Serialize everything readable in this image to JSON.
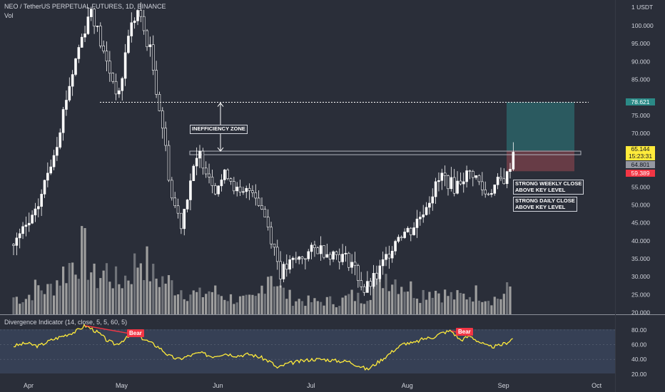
{
  "header": {
    "symbol_line": "NEO / TetherUS PERPETUAL FUTURES, 1D, BINANCE",
    "volume_label": "Vol"
  },
  "indicator": {
    "title": "Divergence Indicator (14, close, 5, 5, 60, 5)",
    "bear_label": "Bear"
  },
  "annotations": {
    "inefficiency": "INEFFICIENCY ZONE",
    "weekly": [
      "STRONG WEEKLY CLOSE",
      "ABOVE KEY LEVEL"
    ],
    "daily": [
      "STRONG DAILY CLOSE",
      "ABOVE KEY LEVEL"
    ]
  },
  "price_tags": {
    "target": "78.621",
    "current": "65.144",
    "countdown": "15:23:31",
    "key_level": "64.801",
    "stop": "59.389"
  },
  "colors": {
    "background": "#2a2e39",
    "indicator_background": "#364055",
    "candle": "#ffffff",
    "volume": "#9e9e9e",
    "rsi_line": "#ffeb3b",
    "bear": "#f23645",
    "profit_zone": "#2b5d62",
    "loss_zone": "#6a3d47",
    "target_tag": "#2b8a87",
    "current_tag": "#ffeb3b",
    "key_tag": "#9598a1",
    "stop_tag": "#f23645"
  },
  "chart_data": [
    {
      "type": "candlestick",
      "currency_label": "1 USDT",
      "y_ticks": [
        20,
        25,
        30,
        35,
        40,
        45,
        50,
        55,
        60,
        65,
        70,
        75,
        80,
        85,
        90,
        95,
        100
      ],
      "y_tick_labels": [
        "20.000",
        "25.000",
        "30.000",
        "35.000",
        "40.000",
        "45.000",
        "50.000",
        "55.000",
        "60.000",
        "65.000",
        "70.000",
        "75.000",
        "80.000",
        "85.000",
        "90.000",
        "95.000",
        "100.000"
      ],
      "x_labels": [
        "Apr",
        "May",
        "Jun",
        "Jul",
        "Aug",
        "Sep",
        "Oct"
      ],
      "ylim": [
        20,
        103
      ],
      "key_levels": {
        "target": 78.621,
        "key_level": 64.801,
        "stop": 59.389,
        "current": 65.144
      },
      "closes": [
        {
          "date": "2021-03-29",
          "close": 39
        },
        {
          "date": "2021-04-05",
          "close": 47
        },
        {
          "date": "2021-04-12",
          "close": 68
        },
        {
          "date": "2021-04-15",
          "close": 80
        },
        {
          "date": "2021-04-19",
          "close": 94
        },
        {
          "date": "2021-04-23",
          "close": 105
        },
        {
          "date": "2021-04-27",
          "close": 92
        },
        {
          "date": "2021-05-02",
          "close": 80
        },
        {
          "date": "2021-05-05",
          "close": 98
        },
        {
          "date": "2021-05-08",
          "close": 104
        },
        {
          "date": "2021-05-12",
          "close": 93
        },
        {
          "date": "2021-05-16",
          "close": 72
        },
        {
          "date": "2021-05-19",
          "close": 52
        },
        {
          "date": "2021-05-22",
          "close": 45
        },
        {
          "date": "2021-05-25",
          "close": 57
        },
        {
          "date": "2021-05-28",
          "close": 64
        },
        {
          "date": "2021-06-02",
          "close": 55
        },
        {
          "date": "2021-06-06",
          "close": 59
        },
        {
          "date": "2021-06-10",
          "close": 52
        },
        {
          "date": "2021-06-14",
          "close": 55
        },
        {
          "date": "2021-06-18",
          "close": 47
        },
        {
          "date": "2021-06-21",
          "close": 38
        },
        {
          "date": "2021-06-23",
          "close": 31
        },
        {
          "date": "2021-06-27",
          "close": 34
        },
        {
          "date": "2021-07-01",
          "close": 36
        },
        {
          "date": "2021-07-05",
          "close": 38
        },
        {
          "date": "2021-07-08",
          "close": 37
        },
        {
          "date": "2021-07-12",
          "close": 36
        },
        {
          "date": "2021-07-16",
          "close": 34
        },
        {
          "date": "2021-07-20",
          "close": 26
        },
        {
          "date": "2021-07-24",
          "close": 30
        },
        {
          "date": "2021-07-28",
          "close": 37
        },
        {
          "date": "2021-07-31",
          "close": 42
        },
        {
          "date": "2021-08-04",
          "close": 43
        },
        {
          "date": "2021-08-07",
          "close": 47
        },
        {
          "date": "2021-08-10",
          "close": 52
        },
        {
          "date": "2021-08-14",
          "close": 58
        },
        {
          "date": "2021-08-18",
          "close": 55
        },
        {
          "date": "2021-08-21",
          "close": 58
        },
        {
          "date": "2021-08-24",
          "close": 59
        },
        {
          "date": "2021-08-28",
          "close": 53
        },
        {
          "date": "2021-09-01",
          "close": 56
        },
        {
          "date": "2021-09-04",
          "close": 58
        },
        {
          "date": "2021-09-06",
          "close": 65
        }
      ]
    },
    {
      "type": "line",
      "title": "Divergence Indicator (14, close, 5, 5, 60, 5)",
      "y_ticks": [
        20,
        40,
        60,
        80
      ],
      "y_tick_labels": [
        "20.00",
        "40.00",
        "60.00",
        "80.00"
      ],
      "ylim": [
        18,
        90
      ],
      "series": [
        {
          "values": [
            {
              "date": "2021-03-29",
              "v": 58
            },
            {
              "date": "2021-04-02",
              "v": 62
            },
            {
              "date": "2021-04-06",
              "v": 58
            },
            {
              "date": "2021-04-10",
              "v": 66
            },
            {
              "date": "2021-04-14",
              "v": 72
            },
            {
              "date": "2021-04-18",
              "v": 78
            },
            {
              "date": "2021-04-21",
              "v": 86
            },
            {
              "date": "2021-04-23",
              "v": 82
            },
            {
              "date": "2021-04-26",
              "v": 74
            },
            {
              "date": "2021-04-28",
              "v": 66
            },
            {
              "date": "2021-05-01",
              "v": 60
            },
            {
              "date": "2021-05-04",
              "v": 68
            },
            {
              "date": "2021-05-07",
              "v": 74
            },
            {
              "date": "2021-05-09",
              "v": 70
            },
            {
              "date": "2021-05-12",
              "v": 63
            },
            {
              "date": "2021-05-15",
              "v": 56
            },
            {
              "date": "2021-05-18",
              "v": 45
            },
            {
              "date": "2021-05-21",
              "v": 40
            },
            {
              "date": "2021-05-24",
              "v": 44
            },
            {
              "date": "2021-05-28",
              "v": 49
            },
            {
              "date": "2021-06-01",
              "v": 44
            },
            {
              "date": "2021-06-05",
              "v": 48
            },
            {
              "date": "2021-06-09",
              "v": 45
            },
            {
              "date": "2021-06-13",
              "v": 47
            },
            {
              "date": "2021-06-17",
              "v": 42
            },
            {
              "date": "2021-06-20",
              "v": 36
            },
            {
              "date": "2021-06-22",
              "v": 28
            },
            {
              "date": "2021-06-25",
              "v": 34
            },
            {
              "date": "2021-06-29",
              "v": 37
            },
            {
              "date": "2021-07-03",
              "v": 40
            },
            {
              "date": "2021-07-07",
              "v": 40
            },
            {
              "date": "2021-07-11",
              "v": 38
            },
            {
              "date": "2021-07-15",
              "v": 37
            },
            {
              "date": "2021-07-19",
              "v": 30
            },
            {
              "date": "2021-07-21",
              "v": 26
            },
            {
              "date": "2021-07-24",
              "v": 35
            },
            {
              "date": "2021-07-27",
              "v": 44
            },
            {
              "date": "2021-07-30",
              "v": 54
            },
            {
              "date": "2021-08-02",
              "v": 62
            },
            {
              "date": "2021-08-05",
              "v": 62
            },
            {
              "date": "2021-08-08",
              "v": 68
            },
            {
              "date": "2021-08-11",
              "v": 70
            },
            {
              "date": "2021-08-14",
              "v": 76
            },
            {
              "date": "2021-08-17",
              "v": 79
            },
            {
              "date": "2021-08-20",
              "v": 66
            },
            {
              "date": "2021-08-23",
              "v": 72
            },
            {
              "date": "2021-08-26",
              "v": 64
            },
            {
              "date": "2021-08-29",
              "v": 57
            },
            {
              "date": "2021-09-01",
              "v": 58
            },
            {
              "date": "2021-09-04",
              "v": 63
            },
            {
              "date": "2021-09-06",
              "v": 69
            }
          ]
        }
      ],
      "divergences": [
        {
          "from": {
            "date": "2021-04-21",
            "v": 86
          },
          "to": {
            "date": "2021-05-07",
            "v": 74
          },
          "label": "Bear"
        },
        {
          "from": {
            "date": "2021-08-17",
            "v": 79
          },
          "to": {
            "date": "2021-08-23",
            "v": 72
          },
          "label": "Bear"
        }
      ]
    },
    {
      "type": "bar",
      "title": "Vol",
      "values": [
        1.0,
        0.9,
        1.6,
        1.4,
        2.2,
        3.0,
        3.8,
        2.0,
        2.6,
        1.8,
        2.4,
        3.5,
        2.2,
        2.0,
        1.6,
        1.3,
        1.1,
        1.4,
        1.1,
        0.9,
        0.8,
        0.9,
        2.8,
        1.4,
        0.9,
        0.8,
        0.7,
        0.8,
        0.7,
        1.1,
        0.9,
        1.7,
        2.4,
        2.0,
        1.6,
        1.2,
        1.5,
        1.2,
        1.0,
        1.1,
        1.3,
        0.9,
        1.0,
        1.8
      ]
    }
  ]
}
